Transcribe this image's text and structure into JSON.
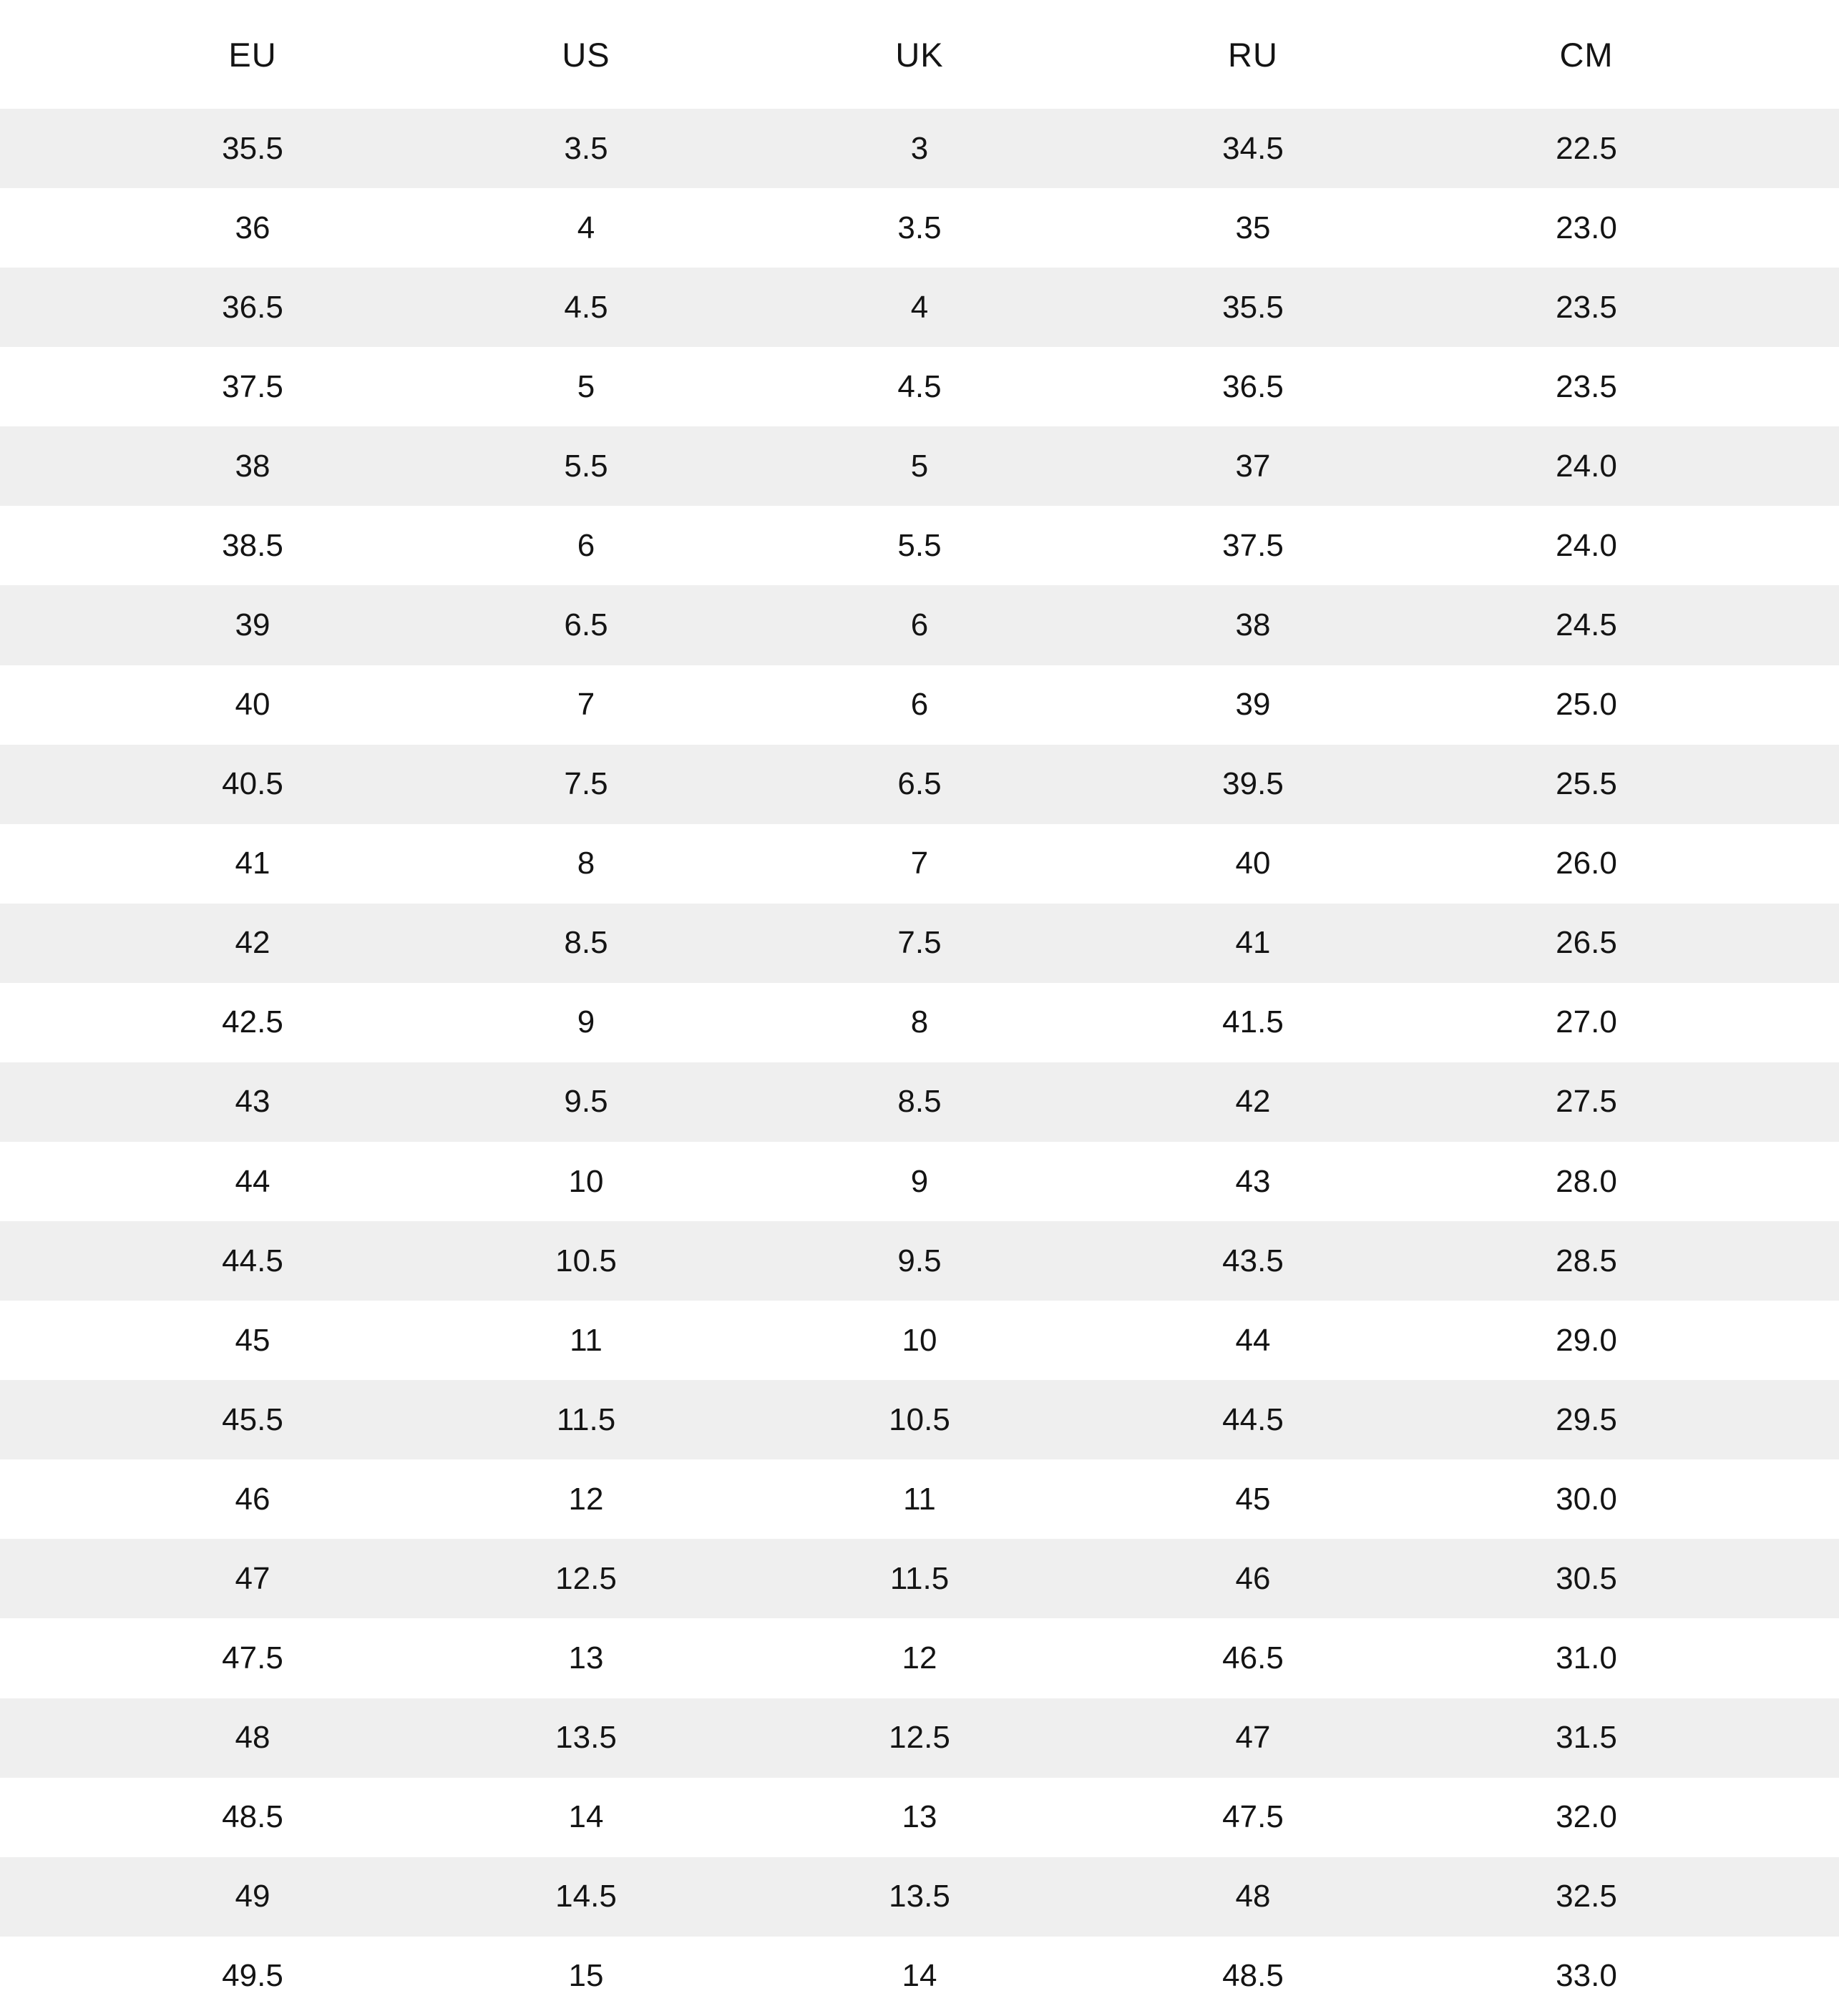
{
  "table": {
    "headers": [
      "EU",
      "US",
      "UK",
      "RU",
      "CM"
    ],
    "rows": [
      [
        "35.5",
        "3.5",
        "3",
        "34.5",
        "22.5"
      ],
      [
        "36",
        "4",
        "3.5",
        "35",
        "23.0"
      ],
      [
        "36.5",
        "4.5",
        "4",
        "35.5",
        "23.5"
      ],
      [
        "37.5",
        "5",
        "4.5",
        "36.5",
        "23.5"
      ],
      [
        "38",
        "5.5",
        "5",
        "37",
        "24.0"
      ],
      [
        "38.5",
        "6",
        "5.5",
        "37.5",
        "24.0"
      ],
      [
        "39",
        "6.5",
        "6",
        "38",
        "24.5"
      ],
      [
        "40",
        "7",
        "6",
        "39",
        "25.0"
      ],
      [
        "40.5",
        "7.5",
        "6.5",
        "39.5",
        "25.5"
      ],
      [
        "41",
        "8",
        "7",
        "40",
        "26.0"
      ],
      [
        "42",
        "8.5",
        "7.5",
        "41",
        "26.5"
      ],
      [
        "42.5",
        "9",
        "8",
        "41.5",
        "27.0"
      ],
      [
        "43",
        "9.5",
        "8.5",
        "42",
        "27.5"
      ],
      [
        "44",
        "10",
        "9",
        "43",
        "28.0"
      ],
      [
        "44.5",
        "10.5",
        "9.5",
        "43.5",
        "28.5"
      ],
      [
        "45",
        "11",
        "10",
        "44",
        "29.0"
      ],
      [
        "45.5",
        "11.5",
        "10.5",
        "44.5",
        "29.5"
      ],
      [
        "46",
        "12",
        "11",
        "45",
        "30.0"
      ],
      [
        "47",
        "12.5",
        "11.5",
        "46",
        "30.5"
      ],
      [
        "47.5",
        "13",
        "12",
        "46.5",
        "31.0"
      ],
      [
        "48",
        "13.5",
        "12.5",
        "47",
        "31.5"
      ],
      [
        "48.5",
        "14",
        "13",
        "47.5",
        "32.0"
      ],
      [
        "49",
        "14.5",
        "13.5",
        "48",
        "32.5"
      ],
      [
        "49.5",
        "15",
        "14",
        "48.5",
        "33.0"
      ]
    ]
  },
  "colors": {
    "row_alt": "#efefef",
    "row_base": "#ffffff",
    "text": "#141414"
  }
}
